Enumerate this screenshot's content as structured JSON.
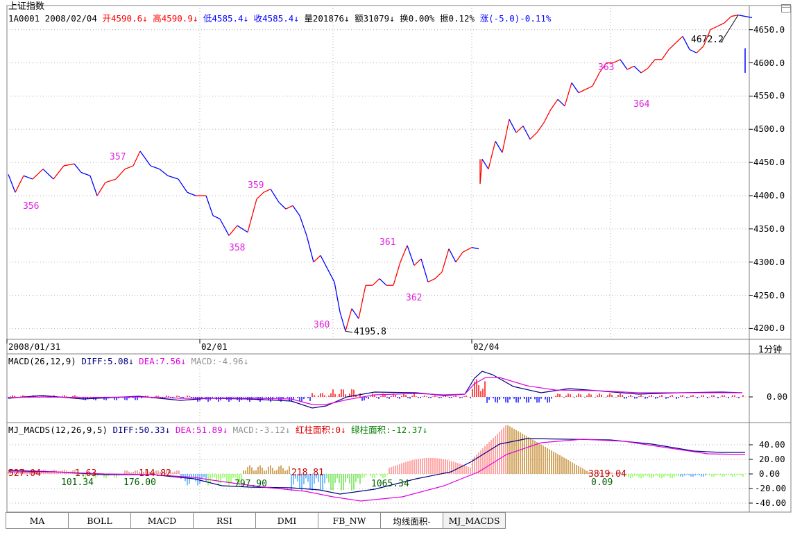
{
  "title": "上证指数",
  "info": {
    "code_date": "1A0001 2008/02/04",
    "open": "开4590.6",
    "high": "高4590.9",
    "low": "低4585.4",
    "close": "收4585.4",
    "volume": "量201876",
    "amount": "额31079",
    "turnover": "换0.00%",
    "amplitude": "振0.12%",
    "change": "涨(-5.0)-0.11%",
    "arrow_down": "↓"
  },
  "colors": {
    "up": "#ff0000",
    "down": "#0000ff",
    "peak": "#e020e0",
    "grid": "#b0b0b0",
    "diff": "#000080",
    "dea": "#e000e0"
  },
  "price_axis": [
    "4650.0",
    "4600.0",
    "4550.0",
    "4500.0",
    "4450.0",
    "4400.0",
    "4350.0",
    "4300.0",
    "4250.0",
    "4200.0"
  ],
  "date_labels": [
    "2008/01/31",
    "02/01",
    "02/04"
  ],
  "period": "1分钟",
  "peaks": [
    {
      "label": "356"
    },
    {
      "label": "357"
    },
    {
      "label": "358"
    },
    {
      "label": "359"
    },
    {
      "label": "360"
    },
    {
      "label": "361"
    },
    {
      "label": "362"
    },
    {
      "label": "363"
    },
    {
      "label": "364"
    }
  ],
  "extremes": {
    "low": "4195.8",
    "high": "4672.2"
  },
  "macd": {
    "header": {
      "name": "MACD(26,12,9)",
      "diff": "DIFF:5.08",
      "dea": "DEA:7.56",
      "macd": "MACD:-4.96"
    },
    "axis": [
      "0.00"
    ]
  },
  "mj_macds": {
    "header": {
      "name": "MJ_MACDS(12,26,9,5)",
      "diff": "DIFF:50.33",
      "dea": "DEA:51.89",
      "macd": "MACD:-3.12",
      "red_area": "红柱面积:0",
      "green_area": "绿柱面积:-12.37"
    },
    "axis": [
      "40.00",
      "20.00",
      "0.00",
      "-20.00",
      "-40.00"
    ],
    "area_labels": [
      {
        "text": "527.04",
        "color": "#c00000"
      },
      {
        "text": "1.63",
        "color": "#c00000"
      },
      {
        "text": "101.34",
        "color": "#006000"
      },
      {
        "text": "176.00",
        "color": "#006000"
      },
      {
        "text": "114.82",
        "color": "#c00000"
      },
      {
        "text": "797.90",
        "color": "#006000"
      },
      {
        "text": "218.81",
        "color": "#c00000"
      },
      {
        "text": "1065.34",
        "color": "#006000"
      },
      {
        "text": "3819.04",
        "color": "#c00000"
      },
      {
        "text": "0.09",
        "color": "#006000"
      }
    ]
  },
  "tabs": [
    "MA",
    "BOLL",
    "MACD",
    "RSI",
    "DMI",
    "FB_NW",
    "均线面积-",
    "MJ_MACDS"
  ],
  "chart_data": {
    "type": "line",
    "title": "上证指数",
    "x": [
      "2008/01/31",
      "02/01",
      "02/04"
    ],
    "series": [
      {
        "values": [
          [
            0,
            4432
          ],
          [
            10,
            4405
          ],
          [
            22,
            4430
          ],
          [
            35,
            4425
          ],
          [
            50,
            4440
          ],
          [
            65,
            4425
          ],
          [
            80,
            4445
          ],
          [
            95,
            4448
          ],
          [
            105,
            4435
          ],
          [
            118,
            4430
          ],
          [
            128,
            4400
          ],
          [
            140,
            4420
          ],
          [
            155,
            4425
          ],
          [
            168,
            4440
          ],
          [
            180,
            4445
          ],
          [
            190,
            4467
          ],
          [
            205,
            4445
          ],
          [
            218,
            4440
          ],
          [
            230,
            4430
          ],
          [
            245,
            4425
          ],
          [
            258,
            4405
          ],
          [
            270,
            4400
          ],
          [
            285,
            4400
          ],
          [
            295,
            4370
          ],
          [
            305,
            4365
          ],
          [
            318,
            4340
          ],
          [
            330,
            4355
          ],
          [
            345,
            4345
          ],
          [
            358,
            4395
          ],
          [
            368,
            4405
          ],
          [
            378,
            4410
          ],
          [
            390,
            4390
          ],
          [
            400,
            4380
          ],
          [
            410,
            4385
          ],
          [
            420,
            4370
          ],
          [
            430,
            4340
          ],
          [
            440,
            4300
          ],
          [
            450,
            4310
          ],
          [
            460,
            4290
          ],
          [
            470,
            4270
          ],
          [
            478,
            4225
          ],
          [
            486,
            4196
          ],
          [
            495,
            4230
          ],
          [
            505,
            4215
          ],
          [
            515,
            4265
          ],
          [
            525,
            4265
          ],
          [
            535,
            4275
          ],
          [
            545,
            4265
          ],
          [
            555,
            4265
          ],
          [
            565,
            4300
          ],
          [
            575,
            4325
          ],
          [
            585,
            4295
          ],
          [
            595,
            4305
          ],
          [
            605,
            4270
          ],
          [
            615,
            4275
          ],
          [
            625,
            4285
          ],
          [
            635,
            4320
          ],
          [
            645,
            4300
          ],
          [
            655,
            4315
          ],
          [
            668,
            4322
          ],
          [
            678,
            4320
          ],
          [
            680,
            4418
          ],
          [
            683,
            4455
          ],
          [
            692,
            4440
          ],
          [
            702,
            4482
          ],
          [
            712,
            4465
          ],
          [
            722,
            4515
          ],
          [
            732,
            4495
          ],
          [
            742,
            4505
          ],
          [
            752,
            4485
          ],
          [
            762,
            4495
          ],
          [
            772,
            4510
          ],
          [
            782,
            4530
          ],
          [
            792,
            4545
          ],
          [
            802,
            4535
          ],
          [
            812,
            4570
          ],
          [
            822,
            4555
          ],
          [
            832,
            4560
          ],
          [
            842,
            4565
          ],
          [
            852,
            4585
          ],
          [
            862,
            4600
          ],
          [
            872,
            4600
          ],
          [
            882,
            4605
          ],
          [
            892,
            4590
          ],
          [
            902,
            4595
          ],
          [
            912,
            4585
          ],
          [
            922,
            4592
          ],
          [
            932,
            4605
          ],
          [
            942,
            4605
          ],
          [
            952,
            4620
          ],
          [
            962,
            4630
          ],
          [
            972,
            4640
          ],
          [
            982,
            4620
          ],
          [
            992,
            4615
          ],
          [
            1002,
            4625
          ],
          [
            1012,
            4650
          ],
          [
            1022,
            4655
          ],
          [
            1032,
            4660
          ],
          [
            1042,
            4670
          ],
          [
            1052,
            4672
          ],
          [
            1062,
            4670
          ],
          [
            1072,
            4668
          ]
        ]
      }
    ],
    "ylim": [
      4190,
      4680
    ]
  }
}
